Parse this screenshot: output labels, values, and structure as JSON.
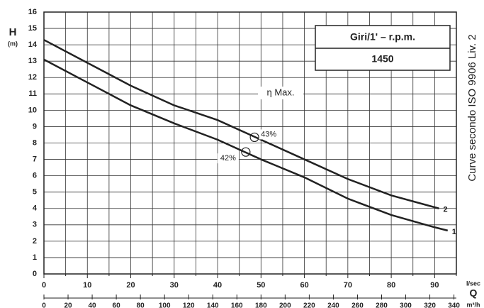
{
  "chart_data": {
    "type": "line",
    "y_label": "H",
    "y_unit": "(m)",
    "x_label": "Q",
    "x_unit": "l/sec",
    "x2_unit": "m³/h",
    "legend_header": "Giri/1' – r.p.m.",
    "legend_value": "1450",
    "side_note": "Curve secondo ISO 9906 Liv. 2",
    "annotation": "η Max.",
    "xlim": [
      0,
      95
    ],
    "xticks": [
      0,
      10,
      20,
      30,
      40,
      50,
      60,
      70,
      80,
      90
    ],
    "xminorticks": [
      5,
      15,
      25,
      35,
      45,
      55,
      65,
      75,
      85,
      95
    ],
    "x2lim": [
      0,
      342
    ],
    "x2ticks": [
      0,
      20,
      40,
      60,
      80,
      100,
      120,
      140,
      160,
      180,
      200,
      220,
      240,
      260,
      280,
      300,
      320,
      340
    ],
    "ylim": [
      0,
      16
    ],
    "yticks": [
      0,
      1,
      2,
      3,
      4,
      5,
      6,
      7,
      8,
      9,
      10,
      11,
      12,
      13,
      14,
      15,
      16
    ],
    "grid": true,
    "series": [
      {
        "name": "1",
        "color": "#222222",
        "x": [
          0,
          10,
          20,
          30,
          40,
          50,
          60,
          70,
          80,
          90,
          93
        ],
        "values": [
          13.1,
          11.7,
          10.3,
          9.2,
          8.2,
          7.0,
          5.9,
          4.6,
          3.6,
          2.85,
          2.65
        ]
      },
      {
        "name": "2",
        "color": "#222222",
        "x": [
          0,
          10,
          20,
          30,
          40,
          50,
          60,
          70,
          80,
          91
        ],
        "values": [
          14.3,
          12.9,
          11.5,
          10.3,
          9.4,
          8.2,
          7.0,
          5.8,
          4.8,
          4.0
        ]
      }
    ],
    "points": [
      {
        "x": 46.5,
        "y": 7.45,
        "label": "42%"
      },
      {
        "x": 48.5,
        "y": 8.35,
        "label": "43%"
      }
    ]
  }
}
